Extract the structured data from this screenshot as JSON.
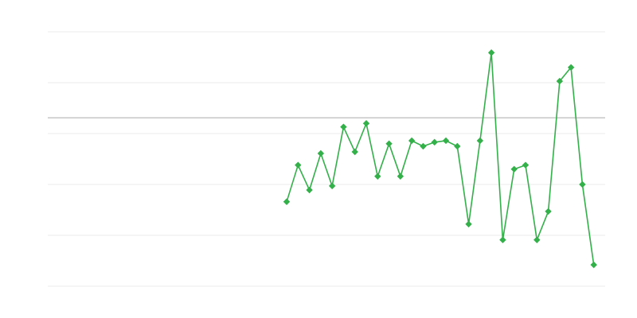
{
  "chart_data": {
    "type": "line",
    "title": "",
    "xlabel": "",
    "ylabel": "",
    "xlim": [
      0,
      49
    ],
    "ylim": [
      0,
      5
    ],
    "grid": true,
    "gridlines_y": [
      0,
      1,
      2,
      3,
      4,
      5
    ],
    "reference_line_y": 3.31,
    "legend": "none",
    "x": [
      21,
      22,
      23,
      24,
      25,
      26,
      27,
      28,
      29,
      30,
      31,
      32,
      33,
      34,
      35,
      36,
      37,
      38,
      39,
      40,
      41,
      42,
      43,
      44,
      45,
      46,
      47,
      48
    ],
    "series": [
      {
        "color": "#34b04a",
        "marker": "diamond",
        "values": [
          1.66,
          2.38,
          1.89,
          2.61,
          1.97,
          3.13,
          2.64,
          3.2,
          2.16,
          2.8,
          2.16,
          2.86,
          2.75,
          2.83,
          2.86,
          2.75,
          1.22,
          2.86,
          4.59,
          0.91,
          2.3,
          2.38,
          0.91,
          1.47,
          4.03,
          4.3,
          2.0,
          0.42
        ]
      }
    ],
    "colors": {
      "grid": "#ebebeb",
      "reference_line": "#aaaaaa",
      "series": "#34b04a"
    }
  }
}
